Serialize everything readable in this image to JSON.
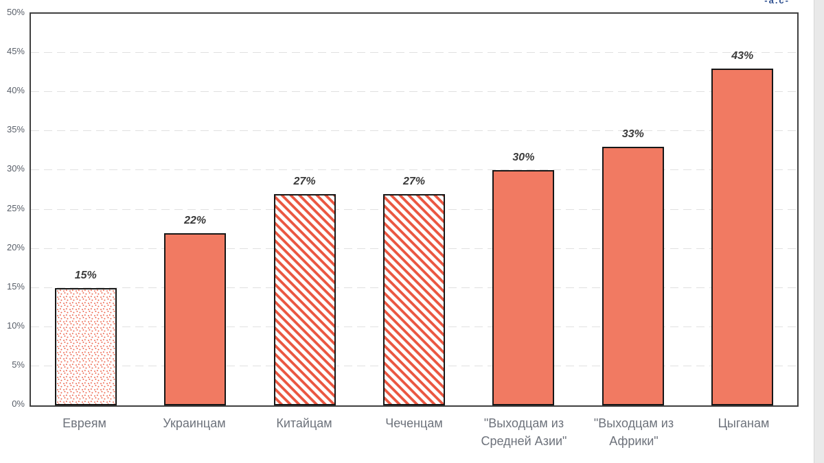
{
  "watermark": "-a.c-",
  "chart_data": {
    "type": "bar",
    "title": "",
    "xlabel": "",
    "ylabel": "",
    "categories": [
      "Евреям",
      "Украинцам",
      "Китайцам",
      "Чеченцам",
      "\"Выходцам из Средней Азии\"",
      "\"Выходцам из Африки\"",
      "Цыганам"
    ],
    "values": [
      15,
      22,
      27,
      27,
      30,
      33,
      43
    ],
    "value_labels": [
      "15%",
      "22%",
      "27%",
      "27%",
      "30%",
      "33%",
      "43%"
    ],
    "bar_fills": [
      "dots",
      "solid",
      "stripes",
      "stripes",
      "solid",
      "solid",
      "solid"
    ],
    "ylim": [
      0,
      50
    ],
    "ytick_step": 5,
    "yticks": [
      "0%",
      "5%",
      "10%",
      "15%",
      "20%",
      "25%",
      "30%",
      "35%",
      "40%",
      "45%",
      "50%"
    ],
    "grid": "horizontal-dashed",
    "legend": "none",
    "colors": {
      "bar_solid": "#F17A62",
      "bar_stripe": "#EA5640",
      "bar_dot": "#EE6B54",
      "bar_border": "#161616",
      "plot_border": "#3f3f3f",
      "grid": "#e0e0e0",
      "ytick_text": "#595f69",
      "xlabel_text": "#6d727b",
      "value_label_text": "#3a3a3a",
      "watermark_text": "#2d4f8f",
      "background": "#ffffff"
    }
  }
}
